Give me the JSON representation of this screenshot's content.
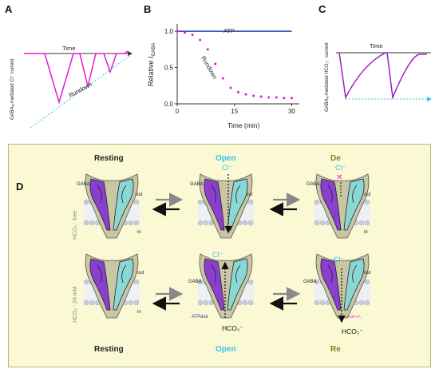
{
  "panels": {
    "a": {
      "letter": "A",
      "ylabel": "GABAₐ-mediated Cl⁻ current",
      "time_label": "Time",
      "rundown_label": "Rundown"
    },
    "b": {
      "letter": "B",
      "ylabel": "Relative I",
      "ylabel_sub": "GABA",
      "xlabel": "Time (min)",
      "atp_label": "ATP",
      "rundown_label": "Rundown"
    },
    "c": {
      "letter": "C",
      "ylabel": "GABAₐ-mediated HCO₃⁻ current",
      "time_label": "Time"
    },
    "d": {
      "letter": "D",
      "top": {
        "resting": "Resting",
        "open": "Open",
        "de": "De",
        "side_label": "HCO₃⁻ free",
        "cl_open": "Cl⁻",
        "cl_de": "Cl⁻",
        "block_mark": "✕"
      },
      "bottom": {
        "resting": "Resting",
        "open": "Open",
        "re": "Re",
        "side_label": "HCO₃⁻ 26 mM",
        "cl_open": "Cl⁻",
        "cl_re": "Cl⁻",
        "hco3_open": "HCO₃⁻",
        "hco3_re": "HCO₃⁻",
        "atpase": "ATPase",
        "adp": "ADP+Pᵢ"
      },
      "gaba_tag": "GABA",
      "out": "out",
      "in": "in"
    }
  },
  "chart_data": [
    {
      "type": "line",
      "panel": "B",
      "series": [
        {
          "name": "ATP",
          "x": [
            0,
            5,
            10,
            15,
            20,
            25,
            30
          ],
          "y": [
            1.0,
            1.0,
            1.0,
            1.0,
            1.0,
            1.0,
            1.0
          ]
        },
        {
          "name": "Rundown",
          "x": [
            0,
            2,
            4,
            6,
            8,
            10,
            12,
            14,
            16,
            18,
            20,
            22,
            24,
            26,
            28,
            30
          ],
          "y": [
            1.0,
            0.98,
            0.95,
            0.88,
            0.75,
            0.55,
            0.35,
            0.22,
            0.16,
            0.13,
            0.11,
            0.1,
            0.09,
            0.09,
            0.08,
            0.08
          ]
        }
      ],
      "xticks": [
        0,
        15,
        30
      ],
      "yticks": [
        0.0,
        0.5,
        1.0
      ],
      "xlim": [
        0,
        32
      ],
      "ylim": [
        0,
        1.1
      ],
      "colors": {
        "atp": "#2a3fa8",
        "rundown": "#d81bd8"
      }
    }
  ],
  "colors": {
    "bg_box": "#fbf9d4",
    "magenta": "#e81ad2",
    "cyan": "#35c3e8",
    "olive": "#8b7a2a"
  }
}
